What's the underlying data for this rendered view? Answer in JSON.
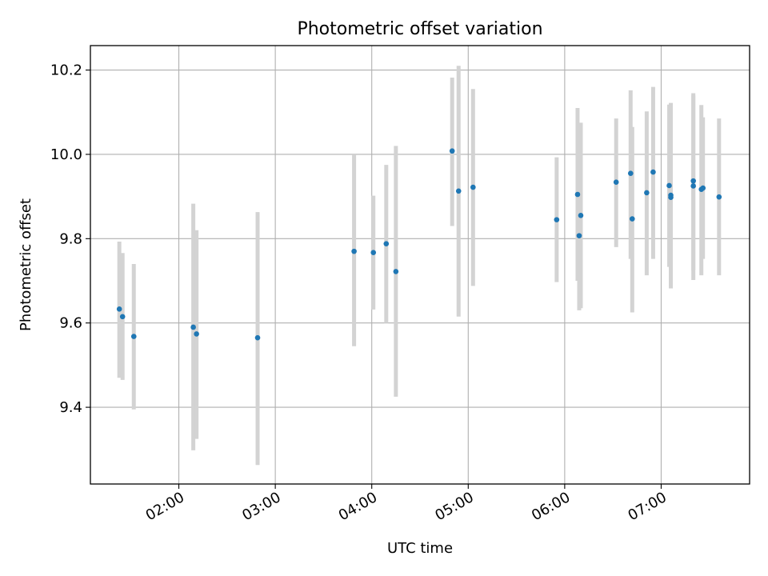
{
  "chart_data": {
    "type": "scatter",
    "title": "Photometric offset variation",
    "xlabel": "UTC time",
    "ylabel": "Photometric offset",
    "xlim": [
      "01:05",
      "07:55"
    ],
    "ylim": [
      9.218,
      10.258
    ],
    "x_ticks": [
      "02:00",
      "03:00",
      "04:00",
      "05:00",
      "06:00",
      "07:00"
    ],
    "y_ticks": [
      "9.4",
      "9.6",
      "9.8",
      "10.0",
      "10.2"
    ],
    "grid": true,
    "legend": "none",
    "colors": {
      "point": "#1f77b4",
      "errorbar": "#d3d3d3",
      "grid": "#b0b0b0"
    },
    "series": [
      {
        "x": [
          "01:23",
          "01:25",
          "01:32",
          "02:09",
          "02:11",
          "02:49",
          "03:49",
          "04:01",
          "04:09",
          "04:15",
          "04:50",
          "04:54",
          "05:03",
          "05:55",
          "06:08",
          "06:09",
          "06:10",
          "06:32",
          "06:41",
          "06:42",
          "06:51",
          "06:55",
          "07:05",
          "07:06",
          "07:06",
          "07:20",
          "07:20",
          "07:25",
          "07:26",
          "07:36"
        ],
        "y": [
          9.633,
          9.615,
          9.568,
          9.59,
          9.574,
          9.565,
          9.77,
          9.767,
          9.788,
          9.722,
          10.008,
          9.913,
          9.922,
          9.845,
          9.905,
          9.807,
          9.855,
          9.934,
          9.955,
          9.847,
          9.909,
          9.958,
          9.926,
          9.903,
          9.898,
          9.937,
          9.925,
          9.917,
          9.92,
          9.899
        ],
        "err_low": [
          9.47,
          9.465,
          9.395,
          9.298,
          9.325,
          9.263,
          9.545,
          9.632,
          9.6,
          9.425,
          9.83,
          9.615,
          9.688,
          9.697,
          9.7,
          9.63,
          9.635,
          9.78,
          9.752,
          9.625,
          9.713,
          9.752,
          9.733,
          9.682,
          9.688,
          9.702,
          9.725,
          9.713,
          9.752,
          9.713
        ],
        "err_high": [
          9.793,
          9.766,
          9.74,
          9.883,
          9.82,
          9.863,
          10.0,
          9.902,
          9.975,
          10.02,
          10.182,
          10.21,
          10.155,
          9.993,
          10.11,
          10.072,
          10.075,
          10.085,
          10.152,
          10.065,
          10.102,
          10.16,
          10.118,
          10.122,
          10.11,
          10.145,
          10.14,
          10.117,
          10.088,
          10.085
        ]
      }
    ]
  }
}
